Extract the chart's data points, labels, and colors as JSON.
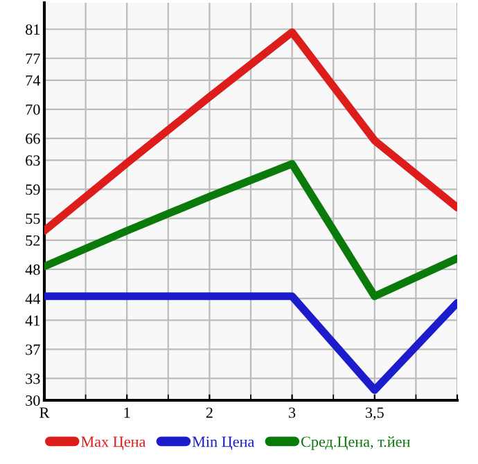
{
  "chart_data": {
    "type": "line",
    "categories": [
      "R",
      "1",
      "2",
      "3",
      "3,5",
      null
    ],
    "series": [
      {
        "name": "Max Цена",
        "color": "#dd1c1c",
        "values": [
          53.3,
          62.6,
          71.7,
          80.6,
          65.7,
          56.5
        ]
      },
      {
        "name": "Min Цена",
        "color": "#1c1ccc",
        "values": [
          44.3,
          44.3,
          44.3,
          44.3,
          31.4,
          43.4
        ]
      },
      {
        "name": "Сред.Цена, т.йен",
        "color": "#0a7a0a",
        "values": [
          48.4,
          53.3,
          58.0,
          62.5,
          44.3,
          49.5
        ]
      }
    ],
    "ylim": [
      30,
      84.64
    ],
    "yticks": [
      30,
      33,
      37,
      41,
      44,
      48,
      52,
      55,
      59,
      63,
      66,
      70,
      74,
      77,
      81
    ],
    "grid": true,
    "legend": "bottom",
    "marker": "none",
    "line_style": "solid"
  }
}
